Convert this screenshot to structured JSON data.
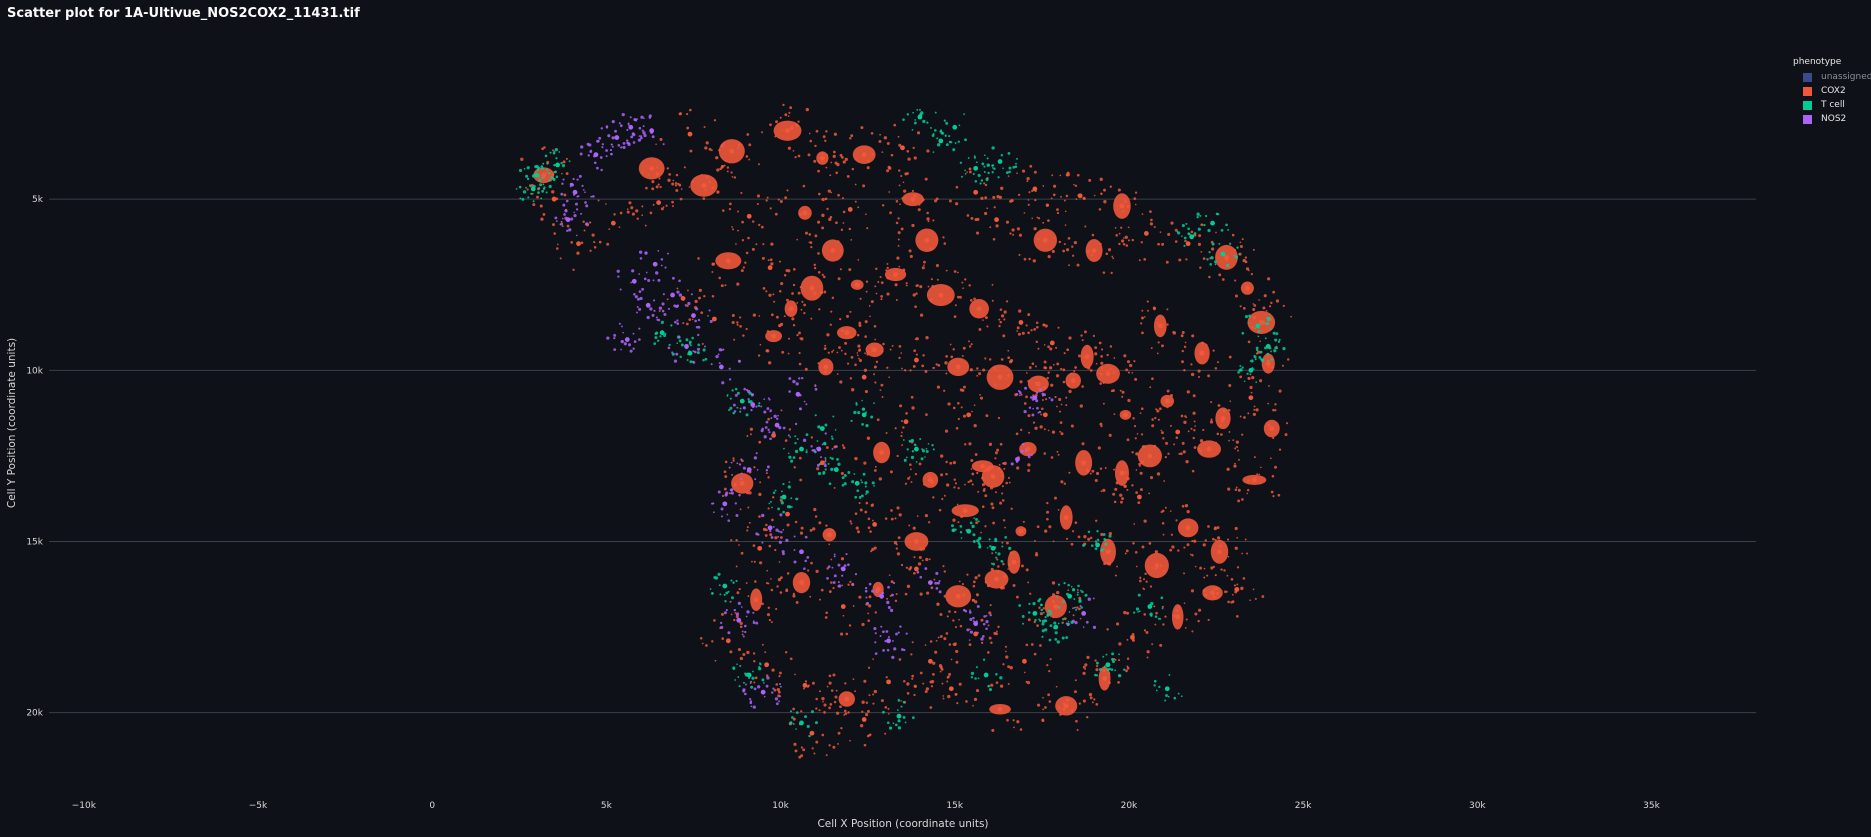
{
  "chart_data": {
    "type": "scatter",
    "title": "Scatter plot for 1A-Ultivue_NOS2COX2_11431.tif",
    "xlabel": "Cell X Position (coordinate units)",
    "ylabel": "Cell Y Position (coordinate units)",
    "xlim": [
      -11000,
      38000
    ],
    "ylim": [
      22200,
      0
    ],
    "y_reversed": true,
    "grid": "horizontal",
    "x_ticks": [
      {
        "value": -10000,
        "label": "−10k"
      },
      {
        "value": -5000,
        "label": "−5k"
      },
      {
        "value": 0,
        "label": "0"
      },
      {
        "value": 5000,
        "label": "5k"
      },
      {
        "value": 10000,
        "label": "10k"
      },
      {
        "value": 15000,
        "label": "15k"
      },
      {
        "value": 20000,
        "label": "20k"
      },
      {
        "value": 25000,
        "label": "25k"
      },
      {
        "value": 30000,
        "label": "30k"
      },
      {
        "value": 35000,
        "label": "35k"
      }
    ],
    "y_ticks": [
      {
        "value": 5000,
        "label": "5k"
      },
      {
        "value": 10000,
        "label": "10k"
      },
      {
        "value": 15000,
        "label": "15k"
      },
      {
        "value": 20000,
        "label": "20k"
      }
    ],
    "legend": {
      "title": "phenotype",
      "placement": "top-right",
      "items": [
        {
          "name": "unassigned",
          "color": "#3a4a8c",
          "visible": false
        },
        {
          "name": "COX2",
          "color": "#f0583a",
          "visible": true
        },
        {
          "name": "T cell",
          "color": "#00cc96",
          "visible": true
        },
        {
          "name": "NOS2",
          "color": "#ab63fa",
          "visible": true
        }
      ]
    },
    "series": [
      {
        "name": "COX2",
        "color": "#f0583a",
        "points": [
          [
            7400,
            3100
          ],
          [
            8600,
            3600
          ],
          [
            10200,
            3000
          ],
          [
            11200,
            3800
          ],
          [
            12400,
            3700
          ],
          [
            13500,
            3500
          ],
          [
            7800,
            4600
          ],
          [
            6500,
            5100
          ],
          [
            9100,
            5500
          ],
          [
            10700,
            5400
          ],
          [
            12000,
            5300
          ],
          [
            13800,
            5000
          ],
          [
            15600,
            4800
          ],
          [
            17300,
            4700
          ],
          [
            18600,
            4900
          ],
          [
            19800,
            5200
          ],
          [
            16200,
            5600
          ],
          [
            17600,
            6200
          ],
          [
            19000,
            6500
          ],
          [
            20500,
            6000
          ],
          [
            21700,
            6300
          ],
          [
            22800,
            6700
          ],
          [
            23400,
            7600
          ],
          [
            23800,
            8600
          ],
          [
            24000,
            9800
          ],
          [
            23500,
            10800
          ],
          [
            22700,
            11400
          ],
          [
            21400,
            11800
          ],
          [
            20600,
            12500
          ],
          [
            19800,
            13000
          ],
          [
            22300,
            12300
          ],
          [
            23600,
            13200
          ],
          [
            8500,
            6800
          ],
          [
            9700,
            7000
          ],
          [
            10900,
            7600
          ],
          [
            12200,
            7500
          ],
          [
            13300,
            7200
          ],
          [
            14600,
            7800
          ],
          [
            15700,
            8200
          ],
          [
            16900,
            8600
          ],
          [
            17800,
            9200
          ],
          [
            18800,
            9600
          ],
          [
            19400,
            10100
          ],
          [
            11900,
            8900
          ],
          [
            12700,
            9400
          ],
          [
            13900,
            9700
          ],
          [
            15100,
            9900
          ],
          [
            16300,
            10200
          ],
          [
            17400,
            10400
          ],
          [
            18400,
            10300
          ],
          [
            7200,
            7900
          ],
          [
            8100,
            8500
          ],
          [
            9800,
            9000
          ],
          [
            10300,
            8200
          ],
          [
            11300,
            9900
          ],
          [
            12400,
            10200
          ],
          [
            5200,
            5700
          ],
          [
            4200,
            6300
          ],
          [
            3500,
            5000
          ],
          [
            6300,
            4100
          ],
          [
            3200,
            4300
          ],
          [
            9800,
            11900
          ],
          [
            11200,
            12700
          ],
          [
            12900,
            12400
          ],
          [
            14300,
            13200
          ],
          [
            15800,
            12800
          ],
          [
            17100,
            12300
          ],
          [
            18700,
            12700
          ],
          [
            20300,
            13700
          ],
          [
            18200,
            14300
          ],
          [
            16900,
            14700
          ],
          [
            19400,
            15300
          ],
          [
            20800,
            15700
          ],
          [
            21700,
            14600
          ],
          [
            22600,
            15300
          ],
          [
            23100,
            16400
          ],
          [
            21400,
            17200
          ],
          [
            20100,
            17800
          ],
          [
            19300,
            19000
          ],
          [
            18200,
            19800
          ],
          [
            17000,
            18500
          ],
          [
            15600,
            17700
          ],
          [
            14300,
            18500
          ],
          [
            13100,
            19100
          ],
          [
            11900,
            19600
          ],
          [
            10700,
            19200
          ],
          [
            9600,
            18600
          ],
          [
            8500,
            17900
          ],
          [
            9300,
            16700
          ],
          [
            10600,
            16200
          ],
          [
            11800,
            16900
          ],
          [
            12800,
            16400
          ],
          [
            13900,
            15800
          ],
          [
            15100,
            16600
          ],
          [
            16200,
            16100
          ],
          [
            11400,
            14800
          ],
          [
            12700,
            14500
          ],
          [
            13900,
            15000
          ],
          [
            10200,
            14200
          ],
          [
            8900,
            13300
          ],
          [
            9400,
            15200
          ],
          [
            15300,
            14100
          ],
          [
            16700,
            15600
          ],
          [
            17900,
            16900
          ],
          [
            14900,
            19300
          ],
          [
            16300,
            19900
          ],
          [
            12400,
            20200
          ],
          [
            10900,
            20600
          ],
          [
            17600,
            11300
          ],
          [
            21100,
            10900
          ],
          [
            22100,
            9500
          ],
          [
            20900,
            8700
          ],
          [
            24100,
            11700
          ],
          [
            22400,
            16500
          ],
          [
            13600,
            11500
          ],
          [
            15400,
            11300
          ],
          [
            16100,
            13100
          ],
          [
            19900,
            11300
          ],
          [
            14200,
            6200
          ],
          [
            11500,
            6500
          ]
        ]
      },
      {
        "name": "T cell",
        "color": "#00cc96",
        "points": [
          [
            3000,
            4300
          ],
          [
            3600,
            4000
          ],
          [
            2900,
            4700
          ],
          [
            14000,
            2600
          ],
          [
            15000,
            2900
          ],
          [
            14600,
            3300
          ],
          [
            16300,
            3900
          ],
          [
            15600,
            4100
          ],
          [
            23700,
            8700
          ],
          [
            24000,
            9300
          ],
          [
            23500,
            10000
          ],
          [
            22700,
            6600
          ],
          [
            21800,
            6100
          ],
          [
            22400,
            5700
          ],
          [
            11200,
            11700
          ],
          [
            10600,
            12300
          ],
          [
            11600,
            12900
          ],
          [
            12200,
            13300
          ],
          [
            10100,
            13700
          ],
          [
            17300,
            17100
          ],
          [
            17900,
            17500
          ],
          [
            18300,
            16600
          ],
          [
            15400,
            14700
          ],
          [
            16100,
            15200
          ],
          [
            8400,
            16300
          ],
          [
            9100,
            18900
          ],
          [
            10600,
            20300
          ],
          [
            13400,
            20100
          ],
          [
            15900,
            18900
          ],
          [
            19400,
            18600
          ],
          [
            21100,
            19300
          ],
          [
            12400,
            11300
          ],
          [
            7400,
            9500
          ],
          [
            6600,
            8900
          ],
          [
            8900,
            10900
          ],
          [
            13900,
            12300
          ],
          [
            19100,
            15100
          ],
          [
            20600,
            16900
          ]
        ]
      },
      {
        "name": "NOS2",
        "color": "#ab63fa",
        "points": [
          [
            4700,
            3700
          ],
          [
            5300,
            3200
          ],
          [
            4100,
            4800
          ],
          [
            3900,
            5600
          ],
          [
            5700,
            2900
          ],
          [
            6300,
            3000
          ],
          [
            6400,
            6900
          ],
          [
            5800,
            7400
          ],
          [
            6900,
            7800
          ],
          [
            7500,
            8400
          ],
          [
            6200,
            8100
          ],
          [
            5600,
            9100
          ],
          [
            7300,
            9300
          ],
          [
            8300,
            9900
          ],
          [
            9200,
            11000
          ],
          [
            9900,
            11600
          ],
          [
            10500,
            10700
          ],
          [
            11100,
            12300
          ],
          [
            9100,
            12900
          ],
          [
            8400,
            13900
          ],
          [
            9700,
            14600
          ],
          [
            10600,
            15300
          ],
          [
            11800,
            15800
          ],
          [
            12900,
            16600
          ],
          [
            14300,
            16200
          ],
          [
            15600,
            17400
          ],
          [
            13100,
            17900
          ],
          [
            8800,
            17300
          ],
          [
            9500,
            19400
          ],
          [
            18700,
            17100
          ],
          [
            17300,
            10800
          ],
          [
            16800,
            12600
          ]
        ]
      }
    ]
  }
}
